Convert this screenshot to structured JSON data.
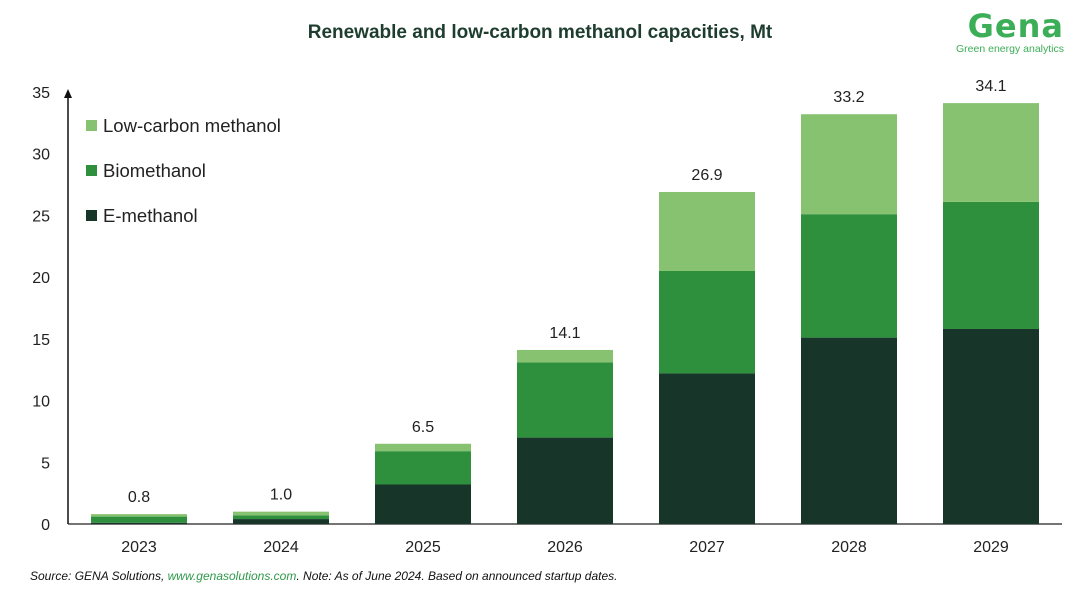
{
  "chart_data": {
    "type": "bar",
    "stacked": true,
    "title": "Renewable and low-carbon methanol capacities, Mt",
    "categories": [
      "2023",
      "2024",
      "2025",
      "2026",
      "2027",
      "2028",
      "2029"
    ],
    "series": [
      {
        "name": "E-methanol",
        "color": "#18352a",
        "values": [
          0.1,
          0.4,
          3.2,
          7.0,
          12.2,
          15.1,
          15.8
        ]
      },
      {
        "name": "Biomethanol",
        "color": "#2e8f3d",
        "values": [
          0.5,
          0.3,
          2.7,
          6.1,
          8.3,
          10.0,
          10.3
        ]
      },
      {
        "name": "Low-carbon methanol",
        "color": "#86c26f",
        "values": [
          0.2,
          0.3,
          0.6,
          1.0,
          6.4,
          8.1,
          8.0
        ]
      }
    ],
    "totals": [
      0.8,
      1.0,
      6.5,
      14.1,
      26.9,
      33.2,
      34.1
    ],
    "total_labels": [
      "0.8",
      "1.0",
      "6.5",
      "14.1",
      "26.9",
      "33.2",
      "34.1"
    ],
    "ylim": [
      0,
      35
    ],
    "yticks": [
      0,
      5,
      10,
      15,
      20,
      25,
      30,
      35
    ],
    "xlabel": "",
    "ylabel": "",
    "legend_order": [
      "Low-carbon methanol",
      "Biomethanol",
      "E-methanol"
    ],
    "legend_position": "top-left"
  },
  "logo": {
    "name": "Gena",
    "tagline": "Green energy analytics"
  },
  "source": {
    "prefix": "Source: GENA Solutions, ",
    "link": "www.genasolutions.com",
    "suffix": ". Note: As of June 2024. Based on announced startup dates."
  }
}
